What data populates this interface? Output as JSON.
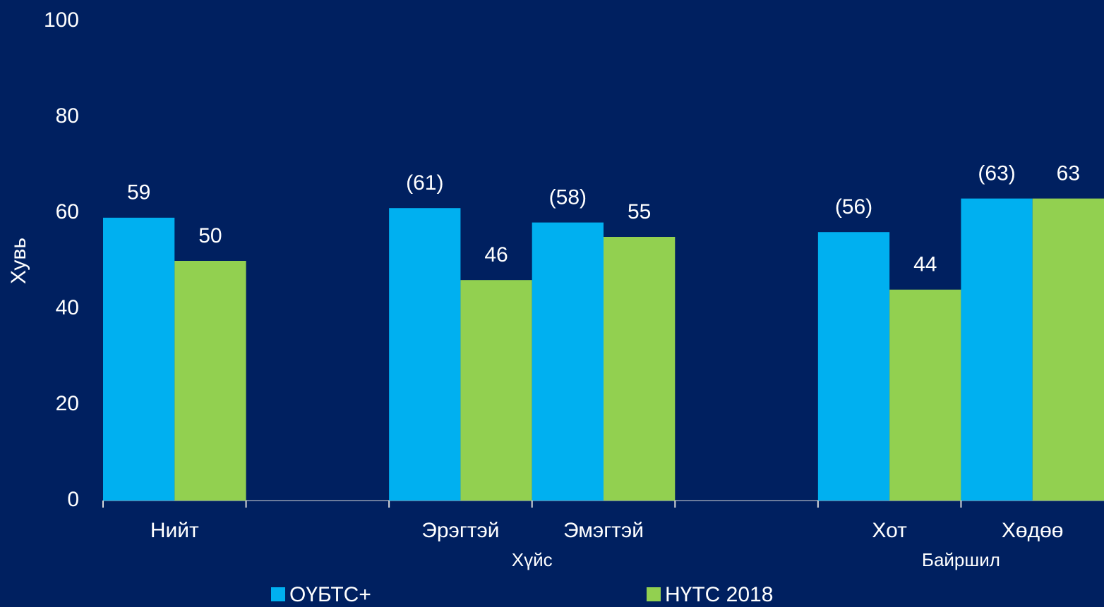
{
  "chart_data": {
    "type": "bar",
    "y_label": "Хувь",
    "categories": [
      "Нийт",
      null,
      "Эрэгтэй",
      "Эмэгтэй",
      null,
      "Хот",
      "Хөдөө"
    ],
    "group_labels": [
      "Хүйс",
      "Байршил"
    ],
    "series": [
      {
        "name": "ОҮБТС+",
        "color": "#00b0f0",
        "values": [
          59,
          null,
          61,
          58,
          null,
          56,
          63
        ],
        "value_labels": [
          "59",
          null,
          "(61)",
          "(58)",
          null,
          "(56)",
          "(63)"
        ]
      },
      {
        "name": "НҮТС 2018",
        "color": "#92d050",
        "values": [
          50,
          null,
          46,
          55,
          null,
          44,
          63
        ]
      }
    ],
    "ylim": [
      0,
      100
    ],
    "yticks": [
      0,
      20,
      40,
      60,
      80,
      100
    ],
    "grid": false,
    "legend": "bottom"
  }
}
